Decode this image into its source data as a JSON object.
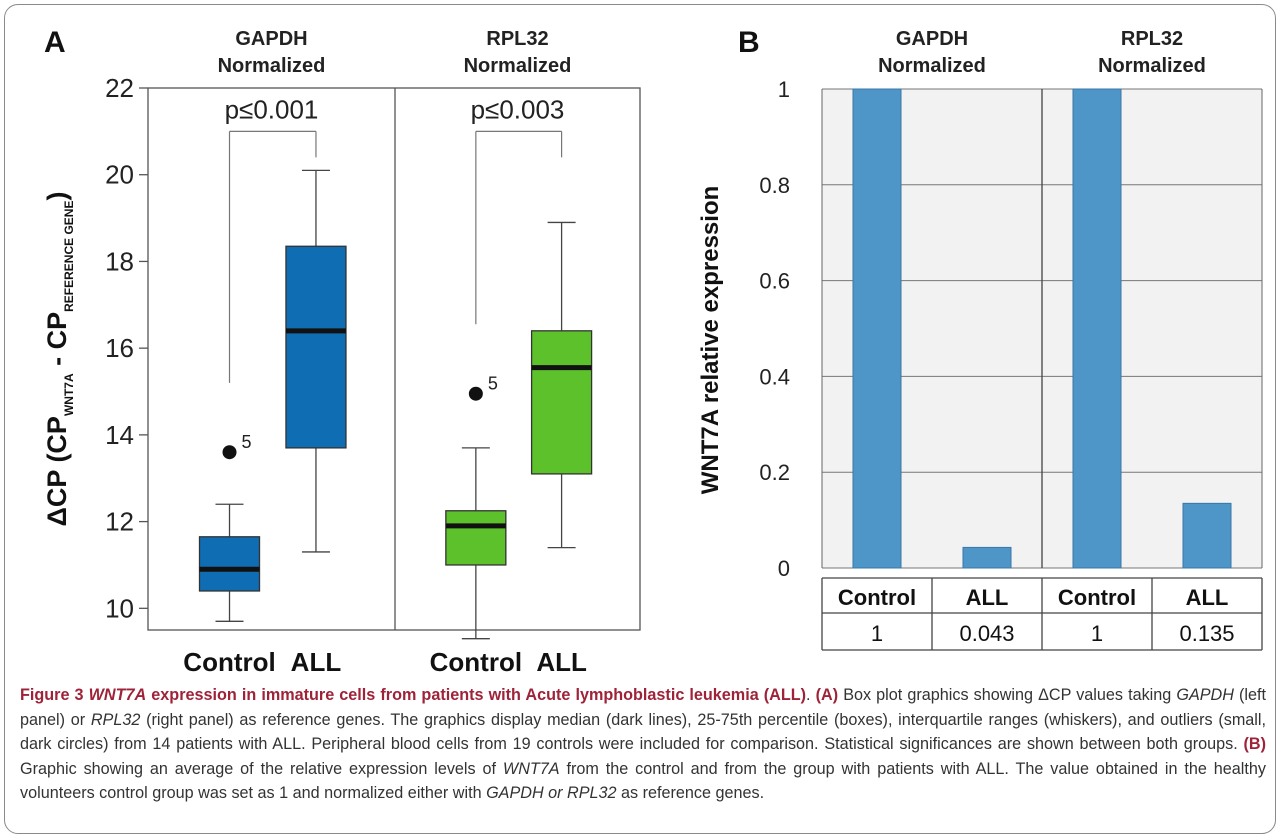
{
  "colors": {
    "gapdh_box": "#0f6db4",
    "rpl32_box": "#5cc12a",
    "bar": "#4e95c8",
    "caption_accent": "#9e2238"
  },
  "chart_data": [
    {
      "id": "A",
      "type": "boxplot",
      "panel_label": "A",
      "ylabel": "ΔCP (CP",
      "ylabel_sub1": "WNT7A",
      "ylabel_mid": " - CP",
      "ylabel_sub2": "REFERENCE GENE",
      "ylabel_end": ")",
      "ylim": [
        9.5,
        22
      ],
      "yticks": [
        10,
        12,
        14,
        16,
        18,
        20,
        22
      ],
      "grid": false,
      "panels": [
        {
          "title_line1": "GAPDH",
          "title_line2": "Normalized",
          "p_value": "p≤0.001",
          "color": "#0f6db4",
          "categories": [
            "Control",
            "ALL"
          ],
          "boxes": [
            {
              "group": "Control",
              "whislo": 9.7,
              "q1": 10.4,
              "med": 10.9,
              "q3": 11.65,
              "whishi": 12.4,
              "outliers": [
                {
                  "value": 13.6,
                  "label": "5"
                }
              ]
            },
            {
              "group": "ALL",
              "whislo": 11.3,
              "q1": 13.7,
              "med": 16.4,
              "q3": 18.35,
              "whishi": 20.1,
              "outliers": []
            }
          ]
        },
        {
          "title_line1": "RPL32",
          "title_line2": "Normalized",
          "p_value": "p≤0.003",
          "color": "#5cc12a",
          "categories": [
            "Control",
            "ALL"
          ],
          "boxes": [
            {
              "group": "Control",
              "whislo": 9.3,
              "q1": 11.0,
              "med": 11.9,
              "q3": 12.25,
              "whishi": 13.7,
              "outliers": [
                {
                  "value": 14.95,
                  "label": "5"
                }
              ]
            },
            {
              "group": "ALL",
              "whislo": 11.4,
              "q1": 13.1,
              "med": 15.55,
              "q3": 16.4,
              "whishi": 18.9,
              "outliers": []
            }
          ]
        }
      ]
    },
    {
      "id": "B",
      "type": "bar",
      "panel_label": "B",
      "ylabel": "WNT7A relative expression",
      "ylim": [
        0,
        1
      ],
      "yticks": [
        0,
        0.2,
        0.4,
        0.6,
        0.8,
        1
      ],
      "ytick_labels": [
        "0",
        "0.2",
        "0.4",
        "0.6",
        "0.8",
        "1"
      ],
      "grid": true,
      "color": "#4e95c8",
      "panels": [
        {
          "title_line1": "GAPDH",
          "title_line2": "Normalized",
          "categories": [
            "Control",
            "ALL"
          ],
          "values": [
            1,
            0.043
          ],
          "value_labels": [
            "1",
            "0.043"
          ]
        },
        {
          "title_line1": "RPL32",
          "title_line2": "Normalized",
          "categories": [
            "Control",
            "ALL"
          ],
          "values": [
            1,
            0.135
          ],
          "value_labels": [
            "1",
            "0.135"
          ]
        }
      ]
    }
  ],
  "caption": {
    "figure_number": "Figure 3",
    "gene": "WNT7A",
    "title_rest": " expression in immature cells from patients with Acute lymphoblastic leukemia (ALL)",
    "title_end": ".",
    "a_label": "(A)",
    "a_text_1": " Box plot graphics showing ΔCP values taking ",
    "a_gene1": "GAPDH",
    "a_text_2": " (left panel) or ",
    "a_gene2": "RPL32",
    "a_text_3": " (right panel) as reference genes. The graphics display median (dark lines), 25-75th percentile (boxes), interquartile ranges (whiskers), and outliers (small, dark circles) from 14 patients with ALL. Peripheral blood cells from 19 controls were included for comparison. Statistical significances are shown between both groups. ",
    "b_label": "(B)",
    "b_text_1": " Graphic showing an average of the relative expression levels of ",
    "b_gene": "WNT7A",
    "b_text_2": " from the control and from the group with patients with ALL. The value obtained in the healthy volunteers control group was set as 1 and normalized either with ",
    "b_gene2": "GAPDH or RPL32",
    "b_text_3": " as reference genes."
  }
}
